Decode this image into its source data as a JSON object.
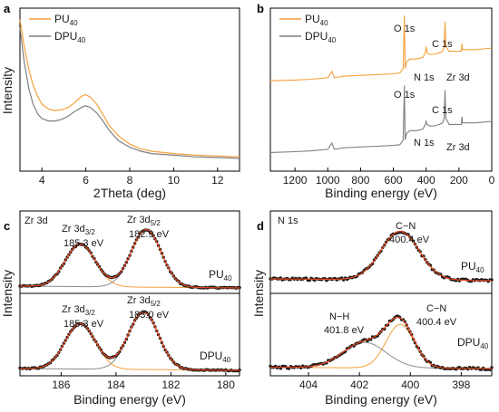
{
  "chart_data": [
    {
      "panel": "a",
      "type": "line",
      "xlabel": "2Theta (deg)",
      "ylabel": "Intensity",
      "xlim": [
        3,
        13
      ],
      "x_ticks": [
        "4",
        "6",
        "8",
        "10",
        "12"
      ],
      "legend": [
        "PU40",
        "DPU40"
      ],
      "legend_position": "top-left",
      "series": [
        {
          "name": "PU40",
          "color": "#f5a03c",
          "points": [
            [
              3.0,
              0.95
            ],
            [
              3.2,
              0.78
            ],
            [
              3.4,
              0.64
            ],
            [
              3.6,
              0.54
            ],
            [
              3.8,
              0.47
            ],
            [
              4.0,
              0.42
            ],
            [
              4.3,
              0.39
            ],
            [
              4.6,
              0.38
            ],
            [
              4.9,
              0.385
            ],
            [
              5.2,
              0.4
            ],
            [
              5.5,
              0.43
            ],
            [
              5.8,
              0.47
            ],
            [
              6.0,
              0.48
            ],
            [
              6.2,
              0.465
            ],
            [
              6.5,
              0.42
            ],
            [
              6.8,
              0.35
            ],
            [
              7.1,
              0.28
            ],
            [
              7.5,
              0.22
            ],
            [
              8.0,
              0.17
            ],
            [
              8.5,
              0.14
            ],
            [
              9.0,
              0.125
            ],
            [
              10.0,
              0.11
            ],
            [
              11.0,
              0.1
            ],
            [
              12.0,
              0.095
            ],
            [
              13.0,
              0.09
            ]
          ]
        },
        {
          "name": "DPU40",
          "color": "#7f7f7f",
          "points": [
            [
              3.0,
              0.9
            ],
            [
              3.2,
              0.68
            ],
            [
              3.4,
              0.52
            ],
            [
              3.6,
              0.42
            ],
            [
              3.8,
              0.36
            ],
            [
              4.0,
              0.33
            ],
            [
              4.3,
              0.315
            ],
            [
              4.6,
              0.315
            ],
            [
              4.9,
              0.325
            ],
            [
              5.2,
              0.345
            ],
            [
              5.5,
              0.375
            ],
            [
              5.8,
              0.4
            ],
            [
              6.0,
              0.41
            ],
            [
              6.2,
              0.4
            ],
            [
              6.5,
              0.365
            ],
            [
              6.8,
              0.31
            ],
            [
              7.1,
              0.25
            ],
            [
              7.5,
              0.19
            ],
            [
              8.0,
              0.15
            ],
            [
              8.5,
              0.125
            ],
            [
              9.0,
              0.11
            ],
            [
              10.0,
              0.1
            ],
            [
              11.0,
              0.09
            ],
            [
              12.0,
              0.085
            ],
            [
              13.0,
              0.08
            ]
          ]
        }
      ]
    },
    {
      "panel": "b",
      "type": "line",
      "xlabel": "Binding energy (eV)",
      "ylabel": "Intensity",
      "xlim": [
        1350,
        0
      ],
      "x_ticks": [
        "1200",
        "1000",
        "800",
        "600",
        "400",
        "200",
        "0"
      ],
      "legend": [
        "PU40",
        "DPU40"
      ],
      "legend_position": "top-left",
      "annotations": [
        "O 1s",
        "N 1s",
        "C 1s",
        "Zr 3d"
      ],
      "series": [
        {
          "name": "PU40",
          "color": "#f5a03c",
          "points": [
            [
              1350,
              0.58
            ],
            [
              1200,
              0.585
            ],
            [
              1100,
              0.59
            ],
            [
              1000,
              0.6
            ],
            [
              975,
              0.64
            ],
            [
              960,
              0.6
            ],
            [
              900,
              0.61
            ],
            [
              800,
              0.615
            ],
            [
              700,
              0.62
            ],
            [
              600,
              0.625
            ],
            [
              560,
              0.63
            ],
            [
              540,
              0.66
            ],
            [
              533,
              1.0
            ],
            [
              528,
              0.66
            ],
            [
              520,
              0.7
            ],
            [
              500,
              0.72
            ],
            [
              460,
              0.72
            ],
            [
              420,
              0.73
            ],
            [
              405,
              0.76
            ],
            [
              400,
              0.8
            ],
            [
              395,
              0.76
            ],
            [
              380,
              0.75
            ],
            [
              350,
              0.75
            ],
            [
              320,
              0.76
            ],
            [
              300,
              0.77
            ],
            [
              290,
              0.8
            ],
            [
              285,
              0.96
            ],
            [
              280,
              0.8
            ],
            [
              260,
              0.77
            ],
            [
              220,
              0.77
            ],
            [
              185,
              0.77
            ],
            [
              182,
              0.82
            ],
            [
              178,
              0.78
            ],
            [
              160,
              0.78
            ],
            [
              100,
              0.78
            ],
            [
              50,
              0.785
            ],
            [
              0,
              0.79
            ]
          ]
        },
        {
          "name": "DPU40",
          "color": "#7f7f7f",
          "points": [
            [
              1350,
              0.12
            ],
            [
              1200,
              0.125
            ],
            [
              1100,
              0.13
            ],
            [
              1000,
              0.14
            ],
            [
              975,
              0.18
            ],
            [
              960,
              0.14
            ],
            [
              900,
              0.15
            ],
            [
              800,
              0.155
            ],
            [
              700,
              0.16
            ],
            [
              600,
              0.165
            ],
            [
              560,
              0.17
            ],
            [
              540,
              0.2
            ],
            [
              533,
              0.55
            ],
            [
              528,
              0.2
            ],
            [
              520,
              0.24
            ],
            [
              500,
              0.26
            ],
            [
              460,
              0.26
            ],
            [
              420,
              0.27
            ],
            [
              405,
              0.3
            ],
            [
              400,
              0.32
            ],
            [
              395,
              0.3
            ],
            [
              380,
              0.29
            ],
            [
              350,
              0.29
            ],
            [
              320,
              0.3
            ],
            [
              300,
              0.31
            ],
            [
              290,
              0.34
            ],
            [
              285,
              0.52
            ],
            [
              280,
              0.34
            ],
            [
              260,
              0.3
            ],
            [
              220,
              0.3
            ],
            [
              185,
              0.3
            ],
            [
              182,
              0.35
            ],
            [
              178,
              0.31
            ],
            [
              160,
              0.31
            ],
            [
              100,
              0.31
            ],
            [
              50,
              0.315
            ],
            [
              0,
              0.32
            ]
          ]
        }
      ]
    },
    {
      "panel": "c",
      "type": "line",
      "xlabel": "Binding energy (eV)",
      "ylabel": "Intensity",
      "xlim": [
        187.5,
        179.5
      ],
      "x_ticks": [
        "186",
        "184",
        "182",
        "180"
      ],
      "region_label": "Zr 3d",
      "sub_panels": [
        {
          "name": "PU40",
          "peaks": [
            {
              "label": "Zr 3d3/2",
              "value": "185.3 eV",
              "center": 185.3
            },
            {
              "label": "Zr 3d5/2",
              "value": "182.9 eV",
              "center": 182.9
            }
          ]
        },
        {
          "name": "DPU40",
          "peaks": [
            {
              "label": "Zr 3d3/2",
              "value": "185.3 eV",
              "center": 185.3
            },
            {
              "label": "Zr 3d5/2",
              "value": "183.0 eV",
              "center": 183.0
            }
          ]
        }
      ]
    },
    {
      "panel": "d",
      "type": "line",
      "xlabel": "Binding energy (eV)",
      "ylabel": "Intensity",
      "xlim": [
        405.5,
        396.8
      ],
      "x_ticks": [
        "404",
        "402",
        "400",
        "398"
      ],
      "region_label": "N 1s",
      "sub_panels": [
        {
          "name": "PU40",
          "peaks": [
            {
              "label": "C−N",
              "value": "400.4 eV",
              "center": 400.4
            }
          ]
        },
        {
          "name": "DPU40",
          "peaks": [
            {
              "label": "N−H",
              "value": "401.8 eV",
              "center": 401.8
            },
            {
              "label": "C−N",
              "value": "400.4 eV",
              "center": 400.4
            }
          ]
        }
      ]
    }
  ],
  "labels": {
    "a": {
      "letter": "a",
      "ylabel": "Intensity",
      "xlabel": "2Theta (deg)",
      "ticks": [
        "4",
        "6",
        "8",
        "10",
        "12"
      ]
    },
    "b": {
      "letter": "b",
      "ylabel": "Intensity",
      "xlabel": "Binding energy (eV)",
      "ticks": [
        "1200",
        "1000",
        "800",
        "600",
        "400",
        "200",
        "0"
      ],
      "ann_o1": "O 1s",
      "ann_c1": "C 1s",
      "ann_n1": "N 1s",
      "ann_zr1": "Zr 3d",
      "ann_o2": "O 1s",
      "ann_c2": "C 1s",
      "ann_n2": "N 1s",
      "ann_zr2": "Zr 3d"
    },
    "c": {
      "letter": "c",
      "ylabel": "Intensity",
      "xlabel": "Binding energy (eV)",
      "ticks": [
        "186",
        "184",
        "182",
        "180"
      ],
      "region": "Zr 3d",
      "top_p1": "Zr 3d",
      "top_p1_sub": "3/2",
      "top_v1": "185.3 eV",
      "top_p2": "Zr 3d",
      "top_p2_sub": "5/2",
      "top_v2": "182.9 eV",
      "bot_p1": "Zr 3d",
      "bot_p1_sub": "3/2",
      "bot_v1": "185.3 eV",
      "bot_p2": "Zr 3d",
      "bot_p2_sub": "5/2",
      "bot_v2": "183.0 eV",
      "top_sample": "PU",
      "bot_sample": "DPU",
      "sample_sub": "40"
    },
    "d": {
      "letter": "d",
      "ylabel": "Intensity",
      "xlabel": "Binding energy (eV)",
      "ticks": [
        "404",
        "402",
        "400",
        "398"
      ],
      "region": "N 1s",
      "top_peak": "C−N",
      "top_val": "400.4 eV",
      "bot_peak1": "N−H",
      "bot_val1": "401.8 eV",
      "bot_peak2": "C−N",
      "bot_val2": "400.4 eV",
      "top_sample": "PU",
      "bot_sample": "DPU",
      "sample_sub": "40"
    },
    "legend": {
      "pu": "PU",
      "dpu": "DPU",
      "sub": "40"
    }
  },
  "colors": {
    "pu": "#f5a03c",
    "dpu": "#7f7f7f",
    "fit": "#e8471e",
    "data": "#1a1a1a",
    "comp_orange": "#f5a03c",
    "comp_gray": "#8c8c8c"
  }
}
